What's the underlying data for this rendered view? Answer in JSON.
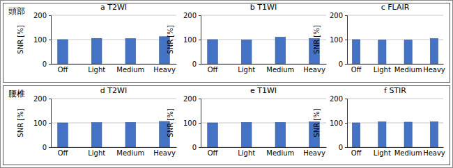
{
  "panels": [
    "頭部",
    "腰椎"
  ],
  "chart_data": [
    {
      "type": "bar",
      "title": "a T2WI",
      "y_label": "SNR [%]",
      "categories": [
        "Off",
        "Light",
        "Medium",
        "Heavy"
      ],
      "values": [
        100,
        105,
        104,
        112
      ],
      "color": "#4472c4",
      "ylim": [
        0,
        200
      ],
      "yticks": [
        0,
        100,
        200
      ],
      "grid": true
    },
    {
      "type": "bar",
      "title": "b T1WI",
      "y_label": "SNR [%]",
      "categories": [
        "Off",
        "Light",
        "Medium",
        "Heavy"
      ],
      "values": [
        100,
        99,
        110,
        104
      ],
      "color": "#4472c4",
      "ylim": [
        0,
        200
      ],
      "yticks": [
        0,
        100,
        200
      ],
      "grid": true
    },
    {
      "type": "bar",
      "title": "c FLAIR",
      "y_label": "SNR [%]",
      "categories": [
        "Off",
        "Light",
        "Medium",
        "Heavy"
      ],
      "values": [
        100,
        98,
        98,
        104
      ],
      "color": "#4472c4",
      "ylim": [
        0,
        200
      ],
      "yticks": [
        0,
        100,
        200
      ],
      "grid": true
    },
    {
      "type": "bar",
      "title": "d T2WI",
      "y_label": "SNR [%]",
      "categories": [
        "Off",
        "Light",
        "Medium",
        "Heavy"
      ],
      "values": [
        100,
        101,
        102,
        106
      ],
      "color": "#4472c4",
      "ylim": [
        0,
        200
      ],
      "yticks": [
        0,
        100,
        200
      ],
      "grid": true
    },
    {
      "type": "bar",
      "title": "e T1WI",
      "y_label": "SNR [%]",
      "categories": [
        "Off",
        "Light",
        "Medium",
        "Heavy"
      ],
      "values": [
        100,
        102,
        102,
        104
      ],
      "color": "#4472c4",
      "ylim": [
        0,
        200
      ],
      "yticks": [
        0,
        100,
        200
      ],
      "grid": true
    },
    {
      "type": "bar",
      "title": "f STIR",
      "y_label": "SNR [%]",
      "categories": [
        "Off",
        "Light",
        "Medium",
        "Heavy"
      ],
      "values": [
        100,
        105,
        103,
        105
      ],
      "color": "#4472c4",
      "ylim": [
        0,
        200
      ],
      "yticks": [
        0,
        100,
        200
      ],
      "grid": true
    }
  ]
}
